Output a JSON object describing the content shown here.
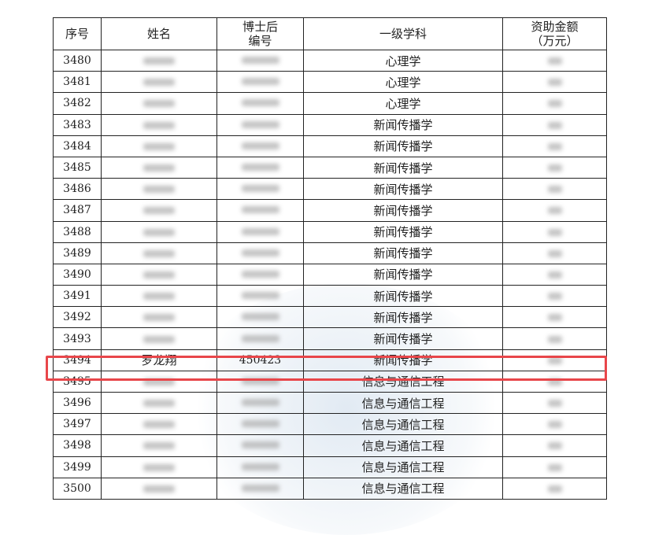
{
  "headers": [
    "序号",
    "姓名",
    "博士后\n编号",
    "一级学科",
    "资助金额\n（万元）"
  ],
  "rows": [
    {
      "no": "3480",
      "name": "",
      "id": "",
      "subject": "心理学"
    },
    {
      "no": "3481",
      "name": "",
      "id": "",
      "subject": "心理学"
    },
    {
      "no": "3482",
      "name": "",
      "id": "",
      "subject": "心理学"
    },
    {
      "no": "3483",
      "name": "",
      "id": "",
      "subject": "新闻传播学"
    },
    {
      "no": "3484",
      "name": "",
      "id": "",
      "subject": "新闻传播学"
    },
    {
      "no": "3485",
      "name": "",
      "id": "",
      "subject": "新闻传播学"
    },
    {
      "no": "3486",
      "name": "",
      "id": "",
      "subject": "新闻传播学"
    },
    {
      "no": "3487",
      "name": "",
      "id": "",
      "subject": "新闻传播学"
    },
    {
      "no": "3488",
      "name": "",
      "id": "",
      "subject": "新闻传播学"
    },
    {
      "no": "3489",
      "name": "",
      "id": "",
      "subject": "新闻传播学"
    },
    {
      "no": "3490",
      "name": "",
      "id": "",
      "subject": "新闻传播学"
    },
    {
      "no": "3491",
      "name": "",
      "id": "",
      "subject": "新闻传播学"
    },
    {
      "no": "3492",
      "name": "",
      "id": "",
      "subject": "新闻传播学"
    },
    {
      "no": "3493",
      "name": "",
      "id": "",
      "subject": "新闻传播学"
    },
    {
      "no": "3494",
      "name": "罗龙翔",
      "id": "450423",
      "subject": "新闻传播学",
      "highlighted": true
    },
    {
      "no": "3495",
      "name": "",
      "id": "",
      "subject": "信息与通信工程"
    },
    {
      "no": "3496",
      "name": "",
      "id": "",
      "subject": "信息与通信工程"
    },
    {
      "no": "3497",
      "name": "",
      "id": "",
      "subject": "信息与通信工程"
    },
    {
      "no": "3498",
      "name": "",
      "id": "",
      "subject": "信息与通信工程"
    },
    {
      "no": "3499",
      "name": "",
      "id": "",
      "subject": "信息与通信工程"
    },
    {
      "no": "3500",
      "name": "",
      "id": "",
      "subject": "信息与通信工程"
    }
  ],
  "highlight_color": "#e8464a"
}
